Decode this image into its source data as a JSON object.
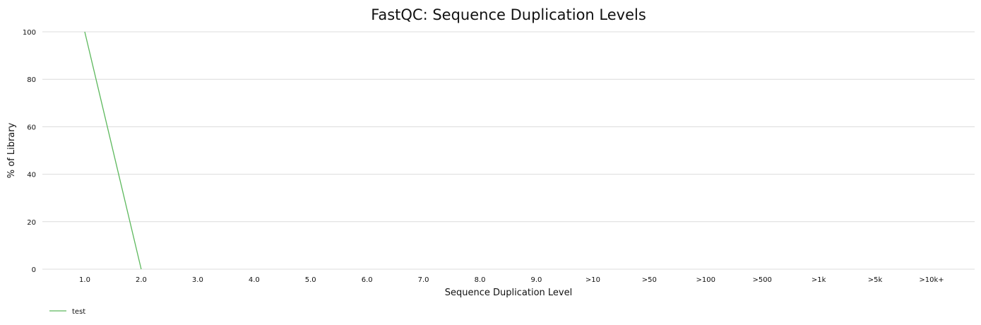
{
  "chart_data": {
    "type": "line",
    "title": "FastQC: Sequence Duplication Levels",
    "xlabel": "Sequence Duplication Level",
    "ylabel": "% of Library",
    "categories": [
      "1.0",
      "2.0",
      "3.0",
      "4.0",
      "5.0",
      "6.0",
      "7.0",
      "8.0",
      "9.0",
      ">10",
      ">50",
      ">100",
      ">500",
      ">1k",
      ">5k",
      ">10k+"
    ],
    "yticks": [
      0,
      20,
      40,
      60,
      80,
      100
    ],
    "ylim": [
      0,
      100
    ],
    "grid": true,
    "legend_position": "bottom-left",
    "series": [
      {
        "name": "test",
        "color": "#5cb85c",
        "values": [
          100,
          0,
          null,
          null,
          null,
          null,
          null,
          null,
          null,
          null,
          null,
          null,
          null,
          null,
          null,
          null
        ]
      }
    ]
  }
}
